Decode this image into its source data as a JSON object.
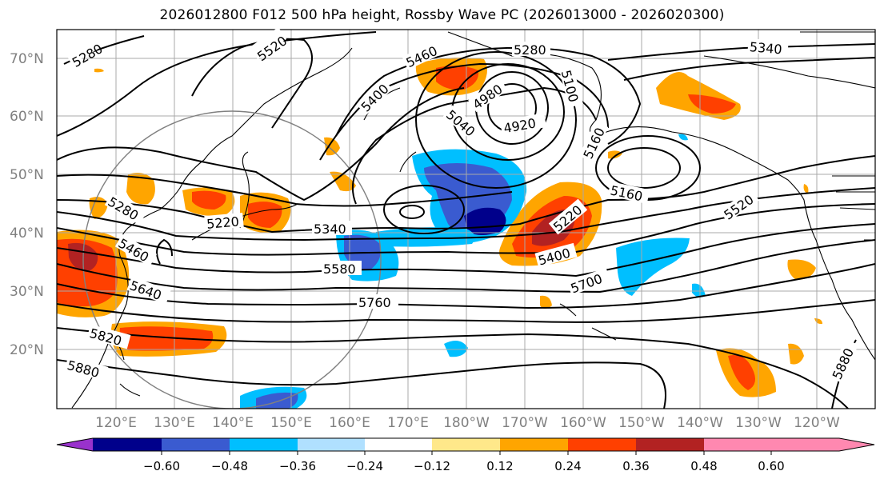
{
  "title": "2026012800 F012 500 hPa height, Rossby Wave PC (2026013000 - 2026020300)",
  "lat_labels": [
    "70°N",
    "60°N",
    "50°N",
    "40°N",
    "30°N",
    "20°N"
  ],
  "lon_labels": [
    "120°E",
    "130°E",
    "140°E",
    "150°E",
    "160°E",
    "170°E",
    "180°W",
    "170°W",
    "160°W",
    "150°W",
    "140°W",
    "130°W",
    "120°W"
  ],
  "contour_labels": [
    "5280",
    "5520",
    "5460",
    "5280",
    "5340",
    "5400",
    "4980",
    "5100",
    "5040",
    "4920",
    "5160",
    "5160",
    "5520",
    "5220",
    "5280",
    "5220",
    "5340",
    "5460",
    "5580",
    "5400",
    "5640",
    "5700",
    "5760",
    "5820",
    "5880",
    "5880"
  ],
  "colorbar": {
    "ticks": [
      "−0.60",
      "−0.48",
      "−0.36",
      "−0.24",
      "−0.12",
      "0.12",
      "0.24",
      "0.36",
      "0.48",
      "0.60"
    ],
    "colors": [
      "#9932cc",
      "#00008b",
      "#3a5bd0",
      "#00bfff",
      "#b0e0ff",
      "#ffffff",
      "#ffe88a",
      "#ffa500",
      "#ff4000",
      "#b22222",
      "#ff88b0"
    ]
  }
}
